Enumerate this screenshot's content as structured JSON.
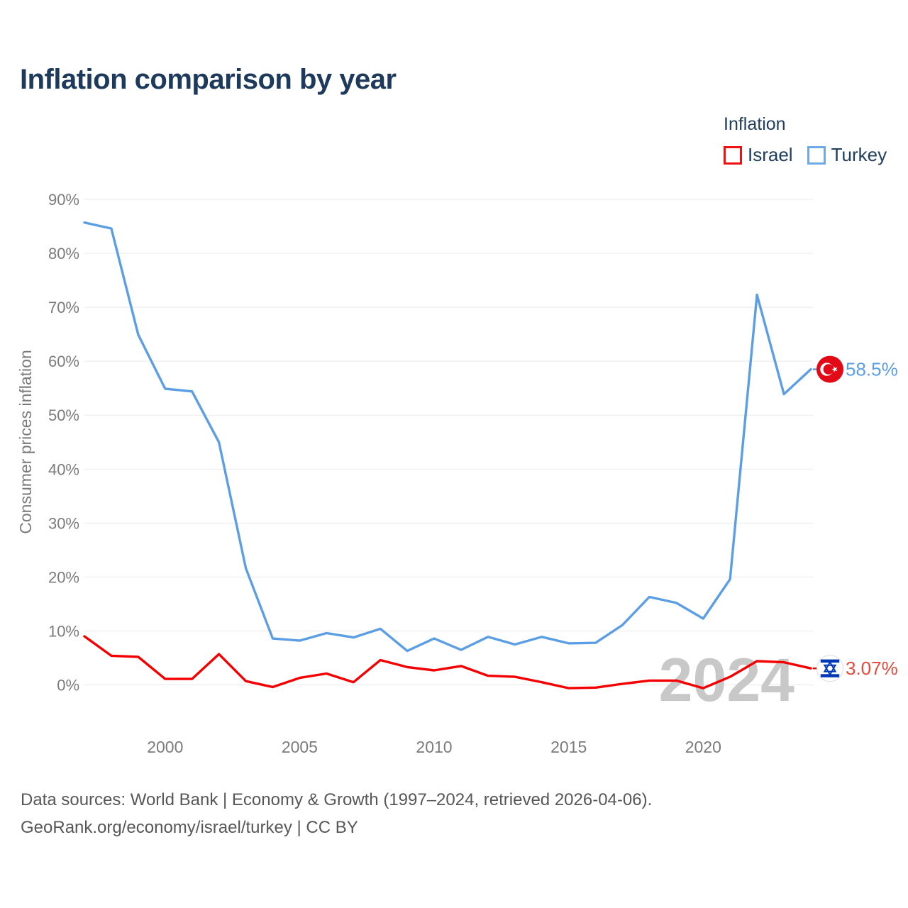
{
  "title": "Inflation comparison by year",
  "legend": {
    "title": "Inflation",
    "items": [
      {
        "label": "Israel",
        "color": "#ee1111"
      },
      {
        "label": "Turkey",
        "color": "#6fa9e6"
      }
    ]
  },
  "chart_data": {
    "type": "line",
    "title": "Inflation comparison by year",
    "xlabel": "",
    "ylabel": "Consumer prices inflation",
    "x_range": [
      1997,
      2024
    ],
    "ylim": [
      -2,
      92
    ],
    "grid": "horizontal",
    "legend_position": "top-right",
    "watermark": "2024",
    "y_ticks": [
      {
        "value": 0,
        "label": "0%"
      },
      {
        "value": 10,
        "label": "10%"
      },
      {
        "value": 20,
        "label": "20%"
      },
      {
        "value": 30,
        "label": "30%"
      },
      {
        "value": 40,
        "label": "40%"
      },
      {
        "value": 50,
        "label": "50%"
      },
      {
        "value": 60,
        "label": "60%"
      },
      {
        "value": 70,
        "label": "70%"
      },
      {
        "value": 80,
        "label": "80%"
      },
      {
        "value": 90,
        "label": "90%"
      }
    ],
    "x_ticks": [
      {
        "value": 2000,
        "label": "2000"
      },
      {
        "value": 2005,
        "label": "2005"
      },
      {
        "value": 2010,
        "label": "2010"
      },
      {
        "value": 2015,
        "label": "2015"
      },
      {
        "value": 2020,
        "label": "2020"
      }
    ],
    "x": [
      1997,
      1998,
      1999,
      2000,
      2001,
      2002,
      2003,
      2004,
      2005,
      2006,
      2007,
      2008,
      2009,
      2010,
      2011,
      2012,
      2013,
      2014,
      2015,
      2016,
      2017,
      2018,
      2019,
      2020,
      2021,
      2022,
      2023,
      2024
    ],
    "series": [
      {
        "name": "Turkey",
        "color": "#5b9ee3",
        "label_color": "#5b9ee3",
        "end_label": "58.5%",
        "flag": "turkey",
        "values": [
          85.7,
          84.6,
          64.9,
          54.9,
          54.4,
          45.0,
          21.6,
          8.6,
          8.2,
          9.6,
          8.8,
          10.4,
          6.3,
          8.6,
          6.5,
          8.9,
          7.5,
          8.9,
          7.7,
          7.8,
          11.1,
          16.3,
          15.2,
          12.3,
          19.6,
          72.3,
          53.9,
          58.5
        ]
      },
      {
        "name": "Israel",
        "color": "#f50000",
        "label_color": "#e8493a",
        "end_label": "3.07%",
        "flag": "israel",
        "values": [
          9.0,
          5.4,
          5.2,
          1.1,
          1.1,
          5.7,
          0.7,
          -0.4,
          1.3,
          2.1,
          0.5,
          4.6,
          3.3,
          2.7,
          3.5,
          1.7,
          1.5,
          0.5,
          -0.6,
          -0.5,
          0.2,
          0.8,
          0.8,
          -0.6,
          1.5,
          4.4,
          4.2,
          3.07
        ]
      }
    ],
    "flags": {
      "turkey": {
        "bg": "#e30a17",
        "fg": "#ffffff"
      },
      "israel": {
        "bg": "#ffffff",
        "fg": "#0038b8",
        "border": "#dadfe5"
      }
    }
  },
  "footer": {
    "line1": "Data sources: World Bank | Economy & Growth (1997–2024, retrieved 2026-04-06).",
    "line2": "GeoRank.org/economy/israel/turkey | CC BY"
  }
}
